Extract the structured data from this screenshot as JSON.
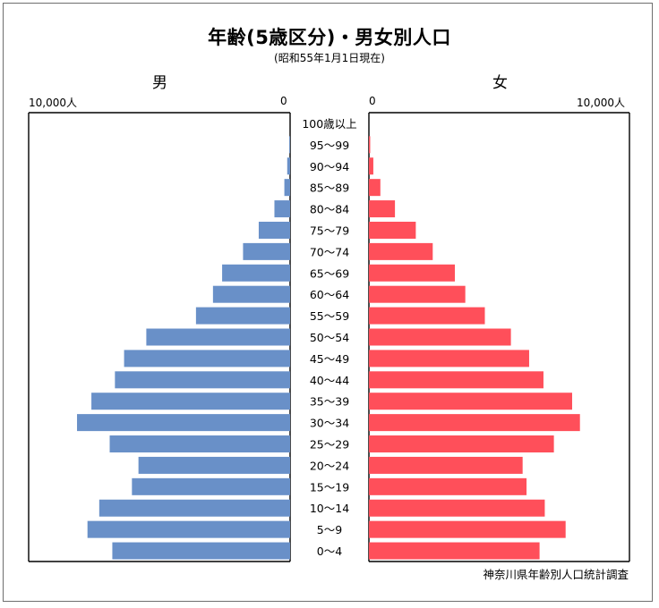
{
  "chart_data": {
    "type": "bar",
    "orientation": "population-pyramid",
    "title": "年齢(5歳区分)・男女別人口",
    "subtitle": "(昭和55年1月1日現在)",
    "source": "神奈川県年齢別人口統計調査",
    "left_series_label": "男",
    "right_series_label": "女",
    "left_axis": {
      "max_label": "10,000人",
      "zero_label": "0",
      "max": 10000
    },
    "right_axis": {
      "max_label": "10,000人",
      "zero_label": "0",
      "max": 10000
    },
    "categories": [
      "100歳以上",
      "95～99",
      "90～94",
      "85～89",
      "80～84",
      "75～79",
      "70～74",
      "65～69",
      "60～64",
      "55～59",
      "50～54",
      "45～49",
      "40～44",
      "35～39",
      "30～34",
      "25～29",
      "20～24",
      "15～19",
      "10～14",
      "5～9",
      "0～4"
    ],
    "series": [
      {
        "name": "男",
        "color": "#6990c8",
        "values": [
          0,
          30,
          110,
          220,
          600,
          1200,
          1800,
          2600,
          2950,
          3600,
          5500,
          6350,
          6700,
          7600,
          8150,
          6900,
          5800,
          6050,
          7300,
          7750,
          6800
        ]
      },
      {
        "name": "女",
        "color": "#ff4f5a",
        "values": [
          0,
          50,
          170,
          440,
          1000,
          1800,
          2450,
          3300,
          3700,
          4450,
          5450,
          6150,
          6700,
          7800,
          8100,
          7100,
          5900,
          6050,
          6750,
          7550,
          6550
        ]
      }
    ],
    "grid": false,
    "legend": "none"
  }
}
